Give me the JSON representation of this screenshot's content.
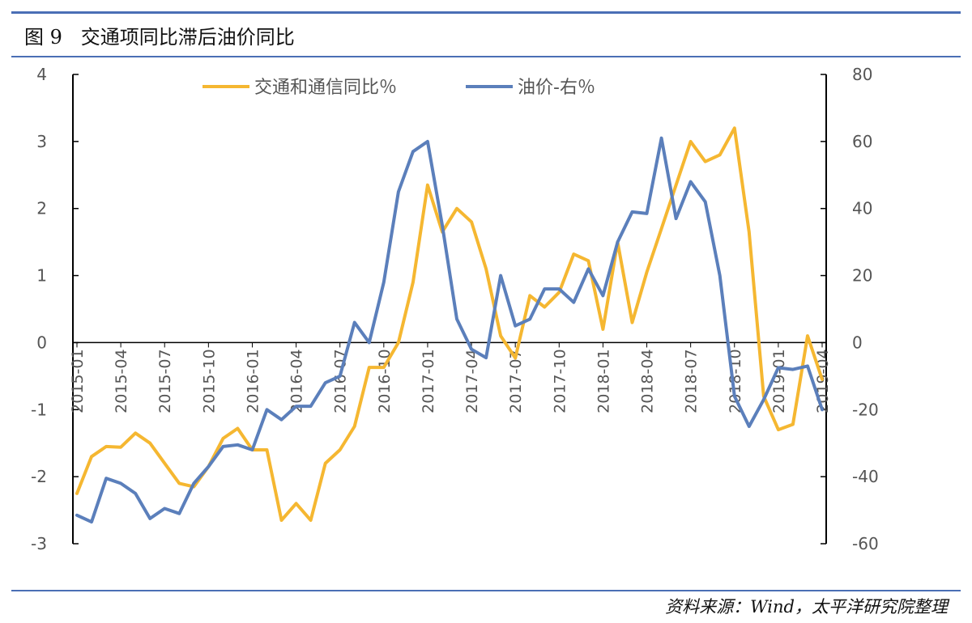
{
  "figure": {
    "title": "图 9   交通项同比滞后油价同比",
    "source": "资料来源：Wind，太平洋研究院整理"
  },
  "chart_data": {
    "type": "line",
    "x": [
      "2015-01",
      "2015-02",
      "2015-03",
      "2015-04",
      "2015-05",
      "2015-06",
      "2015-07",
      "2015-08",
      "2015-09",
      "2015-10",
      "2015-11",
      "2015-12",
      "2016-01",
      "2016-02",
      "2016-03",
      "2016-04",
      "2016-05",
      "2016-06",
      "2016-07",
      "2016-08",
      "2016-09",
      "2016-10",
      "2016-11",
      "2016-12",
      "2017-01",
      "2017-02",
      "2017-03",
      "2017-04",
      "2017-05",
      "2017-06",
      "2017-07",
      "2017-08",
      "2017-09",
      "2017-10",
      "2017-11",
      "2017-12",
      "2018-01",
      "2018-02",
      "2018-03",
      "2018-04",
      "2018-05",
      "2018-06",
      "2018-07",
      "2018-08",
      "2018-09",
      "2018-10",
      "2018-11",
      "2018-12",
      "2019-01",
      "2019-02",
      "2019-03",
      "2019-04"
    ],
    "x_tick_labels": [
      "2015-01",
      "2015-04",
      "2015-07",
      "2015-10",
      "2016-01",
      "2016-04",
      "2016-07",
      "2016-10",
      "2017-01",
      "2017-04",
      "2017-07",
      "2017-10",
      "2018-01",
      "2018-04",
      "2018-07",
      "2018-10",
      "2019-01",
      "2019-04"
    ],
    "y_left": {
      "range": [
        -3,
        4
      ],
      "ticks": [
        "-3",
        "-2",
        "-1",
        "0",
        "1",
        "2",
        "3",
        "4"
      ]
    },
    "y_right": {
      "range": [
        -60,
        80
      ],
      "ticks": [
        "-60",
        "-40",
        "-20",
        "0",
        "20",
        "40",
        "60",
        "80"
      ]
    },
    "legend_position": "top",
    "grid": false,
    "series": [
      {
        "name": "交通和通信同比％",
        "axis": "left",
        "color": "#f5b731",
        "values": [
          -2.25,
          -1.7,
          -1.55,
          -1.56,
          -1.35,
          -1.5,
          -1.8,
          -2.1,
          -2.15,
          -1.85,
          -1.43,
          -1.28,
          -1.6,
          -1.6,
          -2.65,
          -2.4,
          -2.65,
          -1.8,
          -1.6,
          -1.25,
          -0.37,
          -0.37,
          0.0,
          0.9,
          2.35,
          1.65,
          2.0,
          1.8,
          1.1,
          0.1,
          -0.23,
          0.7,
          0.53,
          0.75,
          1.32,
          1.22,
          0.2,
          1.5,
          0.3,
          1.05,
          1.7,
          2.35,
          3.0,
          2.7,
          2.8,
          3.2,
          1.65,
          -0.8,
          -1.3,
          -1.22,
          0.1,
          -0.55
        ]
      },
      {
        "name": "油价-右％",
        "axis": "right",
        "color": "#5b7fbb",
        "values": [
          -51.5,
          -53.5,
          -40.5,
          -42,
          -45,
          -52.5,
          -49.5,
          -51,
          -42,
          -37,
          -31,
          -30.5,
          -32,
          -20,
          -23,
          -19,
          -19,
          -12,
          -10,
          6,
          0,
          18,
          45,
          57,
          60,
          35,
          7,
          -2,
          -4.5,
          20,
          5,
          7,
          16,
          16,
          12,
          22,
          14,
          30,
          39,
          38.5,
          61,
          37,
          48,
          42,
          20,
          -16,
          -25,
          -17,
          -7.5,
          -8,
          -7,
          -20
        ]
      }
    ]
  }
}
